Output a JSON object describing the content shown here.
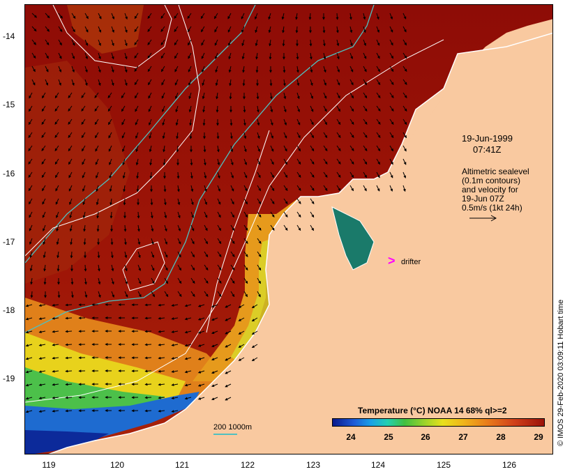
{
  "map": {
    "lat_ticks": [
      "-14",
      "-15",
      "-16",
      "-17",
      "-18",
      "-19"
    ],
    "lon_ticks": [
      "119",
      "120",
      "121",
      "122",
      "123",
      "124",
      "125",
      "126"
    ],
    "land_color": "#f9c9a0",
    "ocean_warm_color": "#9b1208"
  },
  "annotations": {
    "date": "19-Jun-1999",
    "time": "07:41Z",
    "sealevel_lines": [
      "Altimetric sealevel",
      "(0.1m contours)",
      "and velocity for",
      "19-Jun 07Z",
      "0.5m/s (1kt 24h)"
    ],
    "drifter_label": "drifter",
    "credit": "© IMOS 29-Feb-2020 03:09:11 Hobart time"
  },
  "colorbar": {
    "title": "Temperature (°C) NOAA 14 68% ql>=2",
    "ticks": [
      "24",
      "25",
      "26",
      "27",
      "28",
      "29"
    ]
  },
  "scale": {
    "label": "200  1000m"
  }
}
